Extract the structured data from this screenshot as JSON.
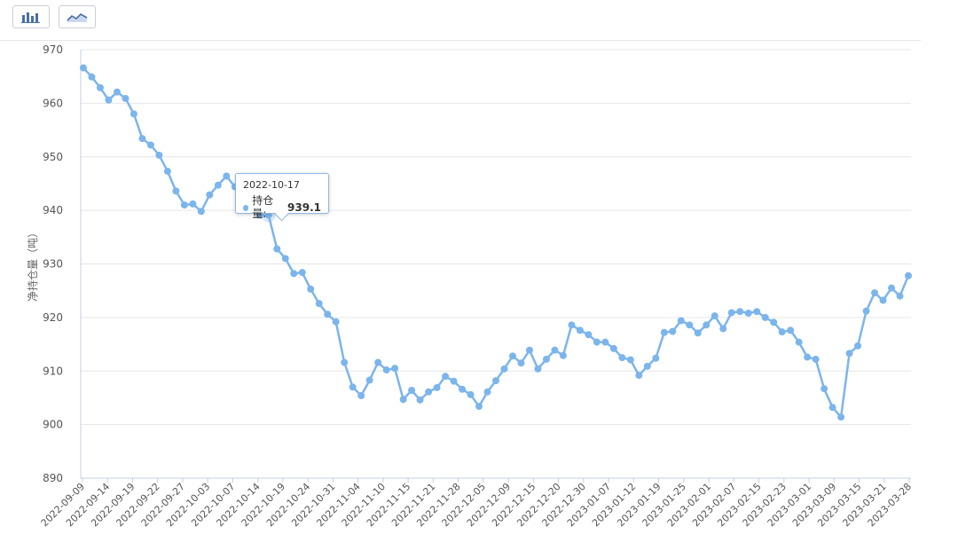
{
  "toolbar": {
    "bar_view_label": "bar-chart-icon",
    "line_view_label": "line-chart-icon"
  },
  "colors": {
    "series": "#7cb5ec",
    "grid": "#e6e6e6",
    "axis_text": "#666666"
  },
  "tooltip": {
    "date": "2022-10-17",
    "series_name": "持仓量:",
    "value": "939.1"
  },
  "chart_data": {
    "type": "line",
    "title": "",
    "xlabel": "",
    "ylabel": "净持仓量（吨）",
    "ylim": [
      890,
      970
    ],
    "yticks": [
      890,
      900,
      910,
      920,
      930,
      940,
      950,
      960,
      970
    ],
    "grid": true,
    "xtick_labels": [
      "2022-09-09",
      "2022-09-14",
      "2022-09-19",
      "2022-09-22",
      "2022-09-27",
      "2022-10-03",
      "2022-10-07",
      "2022-10-14",
      "2022-10-19",
      "2022-10-24",
      "2022-10-31",
      "2022-11-04",
      "2022-11-10",
      "2022-11-15",
      "2022-11-21",
      "2022-11-28",
      "2022-12-05",
      "2022-12-09",
      "2022-12-15",
      "2022-12-20",
      "2022-12-30",
      "2023-01-07",
      "2023-01-12",
      "2023-01-19",
      "2023-01-25",
      "2023-02-01",
      "2023-02-07",
      "2023-02-15",
      "2023-02-23",
      "2023-03-01",
      "2023-03-09",
      "2023-03-15",
      "2023-03-21",
      "2023-03-28"
    ],
    "series": [
      {
        "name": "持仓量",
        "values": [
          966.6,
          964.9,
          962.9,
          960.6,
          962.1,
          960.9,
          958.0,
          953.4,
          952.2,
          950.3,
          947.3,
          943.6,
          941.0,
          941.2,
          939.8,
          942.9,
          944.7,
          946.4,
          944.4,
          944.6,
          940.4,
          939.1,
          939.1,
          932.8,
          931.0,
          928.2,
          928.4,
          925.3,
          922.6,
          920.6,
          919.2,
          911.6,
          907.0,
          905.4,
          908.3,
          911.6,
          910.2,
          910.5,
          904.7,
          906.4,
          904.6,
          906.1,
          906.9,
          909.0,
          908.1,
          906.6,
          905.6,
          903.4,
          906.1,
          908.2,
          910.4,
          912.8,
          911.5,
          913.9,
          910.4,
          912.2,
          913.9,
          912.9,
          918.6,
          917.6,
          916.8,
          915.4,
          915.4,
          914.2,
          912.5,
          912.1,
          909.2,
          910.9,
          912.4,
          917.2,
          917.4,
          919.4,
          918.6,
          917.1,
          918.6,
          920.3,
          917.9,
          920.9,
          921.1,
          920.8,
          921.1,
          920.0,
          919.1,
          917.3,
          917.6,
          915.4,
          912.6,
          912.2,
          906.7,
          903.2,
          901.4,
          913.3,
          914.7,
          921.2,
          924.6,
          923.2,
          925.5,
          924.0,
          927.8
        ]
      }
    ]
  }
}
